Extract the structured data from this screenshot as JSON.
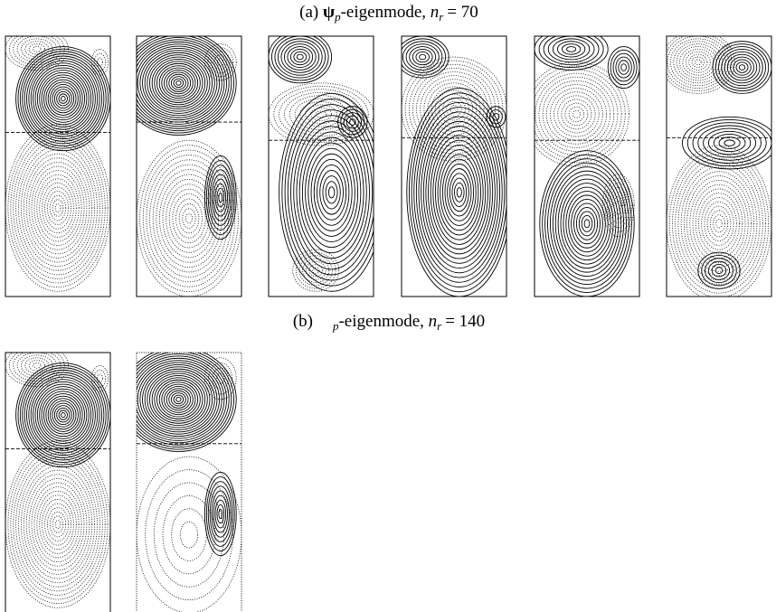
{
  "figure": {
    "part_a": {
      "label": "(a)",
      "symbol": "ψ",
      "symbol_subscript": "p",
      "text": "-eigenmode,",
      "variable": "n",
      "variable_subscript": "r",
      "equals": "= 70"
    },
    "part_b": {
      "label": "(b)",
      "symbol_subscript": "p",
      "text": "-eigenmode,",
      "variable": "n",
      "variable_subscript": "r",
      "equals": "= 140"
    }
  }
}
